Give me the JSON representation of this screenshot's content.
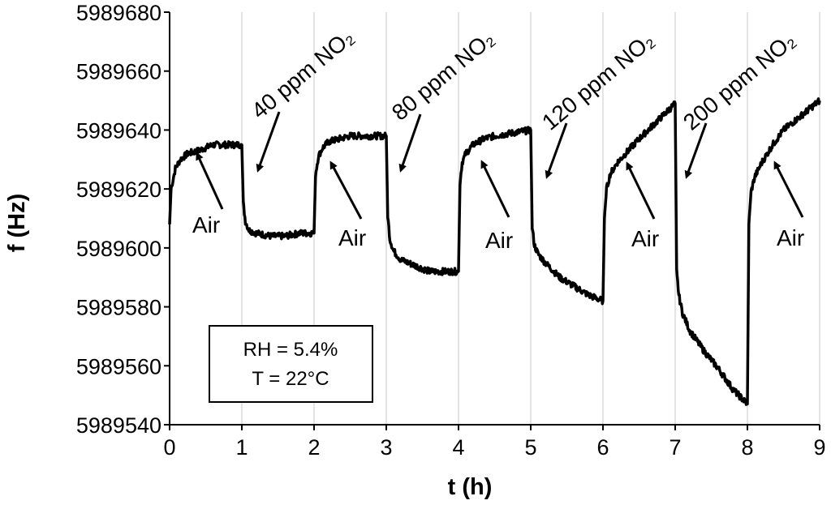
{
  "chart_data": {
    "type": "line",
    "xlabel": "t (h)",
    "ylabel": "f (Hz)",
    "xlim": [
      0,
      9
    ],
    "ylim": [
      5989540,
      5989680
    ],
    "xticks": [
      0,
      1,
      2,
      3,
      4,
      5,
      6,
      7,
      8,
      9
    ],
    "yticks": [
      5989540,
      5989560,
      5989580,
      5989600,
      5989620,
      5989640,
      5989660,
      5989680
    ],
    "vertical_grid": true,
    "line_color": "#000000",
    "x": [
      0,
      0.02,
      0.08,
      0.15,
      0.25,
      0.4,
      0.6,
      0.8,
      1.0,
      1.02,
      1.05,
      1.1,
      1.2,
      1.4,
      1.6,
      1.8,
      2.0,
      2.02,
      2.06,
      2.12,
      2.2,
      2.35,
      2.5,
      2.75,
      3.0,
      3.02,
      3.05,
      3.1,
      3.2,
      3.4,
      3.6,
      3.8,
      4.0,
      4.02,
      4.05,
      4.1,
      4.2,
      4.35,
      4.5,
      4.75,
      5.0,
      5.02,
      5.05,
      5.1,
      5.2,
      5.4,
      5.6,
      5.8,
      6.0,
      6.02,
      6.05,
      6.1,
      6.2,
      6.35,
      6.5,
      6.75,
      7.0,
      7.02,
      7.05,
      7.1,
      7.2,
      7.4,
      7.6,
      7.8,
      8.0,
      8.02,
      8.05,
      8.1,
      8.2,
      8.35,
      8.5,
      8.75,
      9.0
    ],
    "y": [
      5989608,
      5989620,
      5989627,
      5989630,
      5989632,
      5989633,
      5989635,
      5989635,
      5989635,
      5989615,
      5989609,
      5989606,
      5989605,
      5989604,
      5989604,
      5989605,
      5989605,
      5989625,
      5989631,
      5989634,
      5989636,
      5989637,
      5989638,
      5989638,
      5989638,
      5989611,
      5989603,
      5989599,
      5989596,
      5989594,
      5989592,
      5989592,
      5989592,
      5989622,
      5989629,
      5989632,
      5989635,
      5989637,
      5989638,
      5989639,
      5989640,
      5989607,
      5989601,
      5989598,
      5989595,
      5989590,
      5989587,
      5989584,
      5989582,
      5989610,
      5989620,
      5989625,
      5989629,
      5989633,
      5989637,
      5989643,
      5989649,
      5989592,
      5989584,
      5989578,
      5989572,
      5989565,
      5989559,
      5989552,
      5989547,
      5989608,
      5989619,
      5989624,
      5989629,
      5989635,
      5989640,
      5989645,
      5989650
    ],
    "annotations": [
      {
        "text": "Air",
        "x": 0.3,
        "y": 5989631
      },
      {
        "text": "Air",
        "x": 2.18,
        "y": 5989630
      },
      {
        "text": "Air",
        "x": 4.35,
        "y": 5989631
      },
      {
        "text": "Air",
        "x": 6.25,
        "y": 5989624
      },
      {
        "text": "Air",
        "x": 8.35,
        "y": 5989626
      },
      {
        "text": "40 ppm NO₂",
        "x": 1.2,
        "y": 5989624
      },
      {
        "text": "80 ppm NO₂",
        "x": 3.18,
        "y": 5989624
      },
      {
        "text": "120 ppm NO₂",
        "x": 5.2,
        "y": 5989622
      },
      {
        "text": "200 ppm NO₂",
        "x": 7.15,
        "y": 5989622
      }
    ],
    "conditions_box": {
      "line1": "RH = 5.4%",
      "line2": "T = 22°C"
    }
  }
}
